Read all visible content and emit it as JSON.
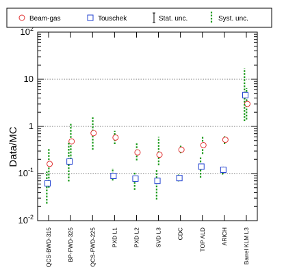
{
  "chart_data": {
    "type": "scatter",
    "ylabel": "Data/MC",
    "yscale": "log",
    "ylim": [
      0.01,
      100
    ],
    "grid": "horizontal dotted lines at decades",
    "legend_position": "top",
    "legend": [
      {
        "label": "Beam-gas",
        "marker": "open-circle",
        "color": "#e03030"
      },
      {
        "label": "Touschek",
        "marker": "open-square",
        "color": "#2040d0"
      },
      {
        "label": "Stat. unc.",
        "marker": "error-bar",
        "color": "#000000"
      },
      {
        "label": "Syst. unc.",
        "marker": "dashed-bar",
        "color": "#1a9a1a"
      }
    ],
    "y_tick_labels": [
      {
        "value": 0.01,
        "base": "10",
        "exp": "-2"
      },
      {
        "value": 0.1,
        "base": "10",
        "exp": "-1"
      },
      {
        "value": 1,
        "base": "1",
        "exp": ""
      },
      {
        "value": 10,
        "base": "10",
        "exp": ""
      },
      {
        "value": 100,
        "base": "10",
        "exp": "2"
      }
    ],
    "categories": [
      "QCS-BWD-315",
      "BP-FWD-325",
      "QCS-FWD-225",
      "PXD L1",
      "PXD L2",
      "SVD L3",
      "CDC",
      "TOP ALD",
      "ARICH",
      "Barrel KLM L3"
    ],
    "series": [
      {
        "name": "Beam-gas",
        "color": "#e03030",
        "marker": "circle",
        "values": [
          0.16,
          0.48,
          0.72,
          0.58,
          0.28,
          0.25,
          0.32,
          0.4,
          0.52,
          3.0
        ],
        "stat_lo": [
          0.14,
          0.44,
          0.66,
          0.52,
          0.26,
          0.23,
          0.29,
          0.36,
          0.47,
          2.6
        ],
        "stat_hi": [
          0.18,
          0.53,
          0.78,
          0.64,
          0.3,
          0.27,
          0.35,
          0.44,
          0.57,
          3.5
        ],
        "syst_lo": [
          0.05,
          0.2,
          0.32,
          0.42,
          0.19,
          0.15,
          0.27,
          0.26,
          0.42,
          1.4
        ],
        "syst_hi": [
          0.33,
          1.15,
          1.6,
          0.8,
          0.46,
          0.6,
          0.39,
          0.6,
          0.64,
          6.5
        ]
      },
      {
        "name": "Touschek",
        "color": "#2040d0",
        "marker": "square",
        "values": [
          0.062,
          0.18,
          null,
          0.089,
          0.078,
          0.07,
          0.08,
          0.14,
          0.12,
          4.6
        ],
        "stat_lo": [
          0.055,
          0.16,
          null,
          0.08,
          0.07,
          0.062,
          0.072,
          0.12,
          0.1,
          3.9
        ],
        "stat_hi": [
          0.07,
          0.2,
          null,
          0.098,
          0.087,
          0.079,
          0.089,
          0.16,
          0.14,
          5.4
        ],
        "syst_lo": [
          0.023,
          0.068,
          null,
          0.071,
          0.045,
          0.028,
          0.068,
          0.082,
          0.095,
          1.3
        ],
        "syst_hi": [
          0.11,
          0.46,
          null,
          0.13,
          0.11,
          0.12,
          0.095,
          0.23,
          0.15,
          17
        ]
      }
    ]
  }
}
